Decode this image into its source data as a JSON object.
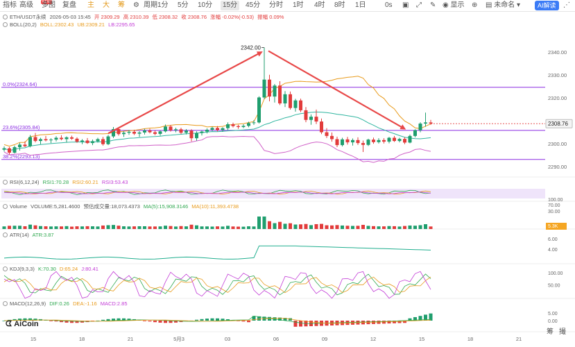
{
  "toolbar": {
    "items": [
      "指标",
      "高级",
      "多图",
      "复盘",
      "主",
      "大",
      "筹",
      "周期",
      "1分",
      "5分",
      "10分",
      "15分",
      "45分",
      "分时",
      "1时",
      "4时",
      "8时",
      "1日",
      "0s",
      "显示",
      "未命名",
      "AI解读"
    ],
    "new_badge": "NEW"
  },
  "info": {
    "symbol": "ETH/USDT永续",
    "datetime": "2026-05-03 15:45",
    "open": "开 2309.29",
    "high": "高 2310.39",
    "low": "低 2308.32",
    "close": "收 2308.76",
    "change": "涨幅 -0.02%(-0.53)",
    "amplitude": "振幅 0.09%",
    "boll_label": "BOLL(20,2)",
    "boll": "BOLL:2302.43",
    "ub": "UB:2309.21",
    "lb": "LB:2295.65",
    "rsi_label": "RSI(6,12,24)",
    "rsi1": "RSI1:70.28",
    "rsi2": "RSI2:60.21",
    "rsi3": "RSI3:53.43",
    "vol_label": "Volume",
    "vol": "VOLUME:5,281.4600",
    "vol_est": "预估成交量:18,073.4373",
    "ma5": "MA(5):15,908.3146",
    "ma10": "MA(10):11,393.4738",
    "atr_label": "ATR(14)",
    "atr": "ATR:3.87",
    "kdj_label": "KDJ(9,3,3)",
    "k": "K:70.30",
    "d": "D:65.24",
    "j": "J:80.41",
    "macd_label": "MACD(12,26,9)",
    "dif": "DIF:0.26",
    "dea": "DEA:-1.16",
    "macd": "MACD:2.85"
  },
  "logo": {
    "brand": "AiCoin"
  },
  "right_buttons": {
    "a": "筹",
    "b": "撮"
  },
  "colors": {
    "up": "#e23b3b",
    "down": "#1f9e6e",
    "boll_mid": "#e89a1a",
    "boll_up": "#2fb5a0",
    "boll_lb": "#d060c8",
    "fib": "#8a2be2",
    "arrow": "#e84848"
  },
  "chart_data": {
    "type": "candlestick",
    "price_axis": {
      "ticks": [
        2290.0,
        2300.0,
        2310.0,
        2320.0,
        2330.0,
        2340.0
      ],
      "ylim": [
        2287,
        2347
      ]
    },
    "last_price": "2308.76",
    "peak_label": "2342.00",
    "fib_levels": [
      {
        "label": "0.0%(2324.64)",
        "price": 2324.64
      },
      {
        "label": "23.6%(2305.84)",
        "price": 2305.84
      },
      {
        "label": "38.2%(2293.13)",
        "price": 2293.13
      }
    ],
    "x_ticks": [
      "15",
      "18",
      "21",
      "5月3",
      "03",
      "06",
      "09",
      "12",
      "15",
      "18",
      "21"
    ],
    "candles": [
      [
        2297.4,
        2298.8,
        2296.6,
        2298.0
      ],
      [
        2298.0,
        2298.6,
        2295.3,
        2296.1
      ],
      [
        2296.1,
        2299.2,
        2295.8,
        2298.5
      ],
      [
        2298.5,
        2300.4,
        2297.0,
        2299.6
      ],
      [
        2299.6,
        2301.0,
        2298.5,
        2298.9
      ],
      [
        2298.9,
        2303.8,
        2298.4,
        2302.9
      ],
      [
        2302.9,
        2304.7,
        2300.6,
        2301.2
      ],
      [
        2301.2,
        2302.6,
        2299.8,
        2302.0
      ],
      [
        2302.0,
        2303.4,
        2301.0,
        2301.5
      ],
      [
        2301.5,
        2302.4,
        2300.3,
        2301.8
      ],
      [
        2301.8,
        2303.3,
        2301.0,
        2302.6
      ],
      [
        2302.6,
        2303.7,
        2301.5,
        2302.0
      ],
      [
        2302.0,
        2303.2,
        2300.5,
        2302.8
      ],
      [
        2302.8,
        2303.5,
        2301.7,
        2302.2
      ],
      [
        2302.2,
        2302.8,
        2300.4,
        2300.9
      ],
      [
        2300.9,
        2302.0,
        2299.8,
        2301.4
      ],
      [
        2301.4,
        2302.5,
        2299.9,
        2300.3
      ],
      [
        2300.3,
        2301.8,
        2299.4,
        2301.1
      ],
      [
        2301.1,
        2302.6,
        2300.5,
        2302.0
      ],
      [
        2302.0,
        2303.0,
        2299.2,
        2299.8
      ],
      [
        2299.8,
        2303.8,
        2299.4,
        2303.2
      ],
      [
        2303.2,
        2307.3,
        2302.5,
        2306.4
      ],
      [
        2306.4,
        2307.0,
        2303.5,
        2304.2
      ],
      [
        2304.2,
        2305.4,
        2303.0,
        2304.8
      ],
      [
        2304.8,
        2306.0,
        2303.9,
        2305.2
      ],
      [
        2305.2,
        2306.1,
        2303.8,
        2304.4
      ],
      [
        2304.4,
        2305.5,
        2303.0,
        2304.9
      ],
      [
        2304.9,
        2306.5,
        2304.0,
        2305.8
      ],
      [
        2305.8,
        2306.6,
        2304.5,
        2305.0
      ],
      [
        2305.0,
        2305.8,
        2303.7,
        2304.3
      ],
      [
        2304.3,
        2305.7,
        2303.5,
        2305.4
      ],
      [
        2305.4,
        2308.4,
        2304.9,
        2307.5
      ],
      [
        2307.5,
        2308.2,
        2305.3,
        2305.9
      ],
      [
        2305.9,
        2307.0,
        2305.0,
        2306.3
      ],
      [
        2306.3,
        2307.0,
        2304.2,
        2304.8
      ],
      [
        2304.8,
        2306.4,
        2304.1,
        2305.7
      ],
      [
        2305.7,
        2306.3,
        2301.0,
        2302.4
      ],
      [
        2302.4,
        2305.4,
        2301.3,
        2304.7
      ],
      [
        2304.7,
        2305.8,
        2303.6,
        2305.3
      ],
      [
        2305.3,
        2306.7,
        2304.5,
        2306.1
      ],
      [
        2306.1,
        2307.4,
        2305.5,
        2306.9
      ],
      [
        2306.9,
        2307.7,
        2305.4,
        2306.0
      ],
      [
        2306.0,
        2307.2,
        2305.2,
        2306.8
      ],
      [
        2306.8,
        2309.3,
        2306.0,
        2308.5
      ],
      [
        2308.5,
        2309.2,
        2307.1,
        2307.7
      ],
      [
        2307.7,
        2308.3,
        2306.5,
        2307.3
      ],
      [
        2307.3,
        2308.5,
        2306.8,
        2307.8
      ],
      [
        2307.8,
        2309.6,
        2307.2,
        2309.0
      ],
      [
        2309.0,
        2310.3,
        2308.2,
        2309.3
      ],
      [
        2309.3,
        2320.7,
        2308.8,
        2320.2
      ],
      [
        2320.2,
        2342.0,
        2319.5,
        2328.0
      ],
      [
        2328.0,
        2330.1,
        2318.5,
        2320.6
      ],
      [
        2320.6,
        2326.1,
        2318.0,
        2325.4
      ],
      [
        2325.4,
        2327.3,
        2316.9,
        2317.6
      ],
      [
        2317.6,
        2323.0,
        2316.0,
        2321.6
      ],
      [
        2321.6,
        2322.8,
        2314.9,
        2315.6
      ],
      [
        2315.6,
        2319.6,
        2314.0,
        2318.9
      ],
      [
        2318.9,
        2319.7,
        2313.8,
        2314.6
      ],
      [
        2314.6,
        2316.0,
        2309.4,
        2310.4
      ],
      [
        2310.4,
        2312.8,
        2308.3,
        2311.8
      ],
      [
        2311.8,
        2314.9,
        2308.6,
        2309.7
      ],
      [
        2309.7,
        2311.0,
        2304.2,
        2305.0
      ],
      [
        2305.0,
        2306.8,
        2302.5,
        2303.4
      ],
      [
        2303.4,
        2304.9,
        2300.9,
        2302.0
      ],
      [
        2302.0,
        2303.1,
        2298.5,
        2299.4
      ],
      [
        2299.4,
        2302.6,
        2298.8,
        2301.9
      ],
      [
        2301.9,
        2303.0,
        2299.6,
        2300.6
      ],
      [
        2300.6,
        2302.3,
        2299.2,
        2301.6
      ],
      [
        2301.6,
        2302.8,
        2299.5,
        2300.3
      ],
      [
        2300.3,
        2301.4,
        2296.4,
        2299.5
      ],
      [
        2299.5,
        2302.2,
        2299.0,
        2301.8
      ],
      [
        2301.8,
        2302.7,
        2300.0,
        2300.7
      ],
      [
        2300.7,
        2302.4,
        2300.1,
        2301.6
      ],
      [
        2301.6,
        2302.4,
        2300.1,
        2300.9
      ],
      [
        2300.9,
        2303.0,
        2300.2,
        2302.6
      ],
      [
        2302.6,
        2303.4,
        2300.8,
        2301.2
      ],
      [
        2301.2,
        2302.6,
        2300.6,
        2302.1
      ],
      [
        2302.1,
        2302.8,
        2299.8,
        2300.5
      ],
      [
        2300.5,
        2304.0,
        2300.2,
        2303.4
      ],
      [
        2303.4,
        2306.3,
        2302.8,
        2305.9
      ],
      [
        2305.9,
        2309.4,
        2305.0,
        2308.8
      ],
      [
        2308.8,
        2313.6,
        2307.4,
        2309.3
      ],
      [
        2309.3,
        2310.4,
        2308.3,
        2308.8
      ]
    ]
  }
}
